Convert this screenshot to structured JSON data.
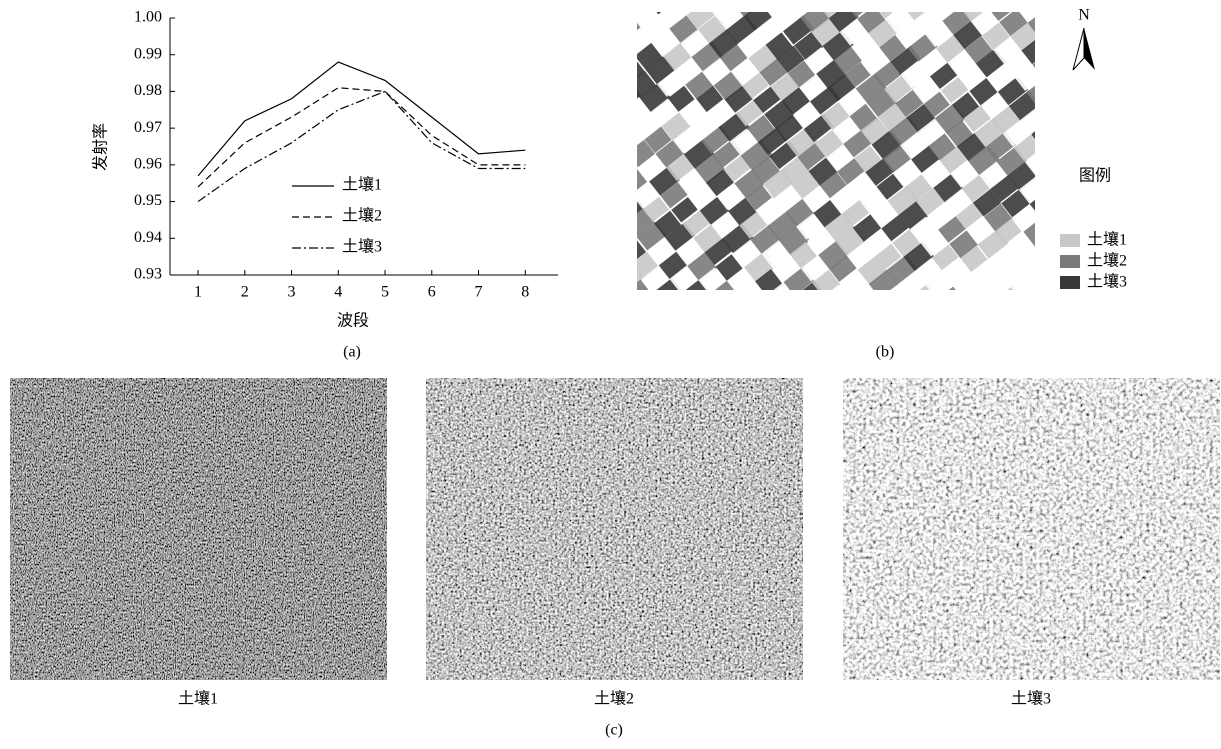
{
  "chart_data": {
    "type": "line",
    "xlabel": "波段",
    "ylabel": "发射率",
    "x": [
      1,
      2,
      3,
      4,
      5,
      6,
      7,
      8
    ],
    "xlim": [
      0.4,
      8.7
    ],
    "xticks": [
      1,
      2,
      3,
      4,
      5,
      6,
      7,
      8
    ],
    "ylim": [
      0.93,
      1.0
    ],
    "yticks": [
      0.93,
      0.94,
      0.95,
      0.96,
      0.97,
      0.98,
      0.99,
      {
        "value": 1.0,
        "label": "1.00"
      }
    ],
    "legend": "lower center",
    "series": [
      {
        "name": "土壤1",
        "color": "#000000",
        "style": "solid",
        "values": [
          0.957,
          0.972,
          0.978,
          0.988,
          0.983,
          0.973,
          0.963,
          0.964
        ]
      },
      {
        "name": "土壤2",
        "color": "#000000",
        "style": "dashed",
        "values": [
          0.954,
          0.966,
          0.973,
          0.981,
          0.98,
          0.968,
          0.96,
          0.96
        ]
      },
      {
        "name": "土壤3",
        "color": "#000000",
        "style": "dashdot",
        "values": [
          0.95,
          0.959,
          0.966,
          0.975,
          0.98,
          0.966,
          0.959,
          0.959
        ]
      }
    ]
  },
  "captions": {
    "a": "(a)",
    "b": "(b)",
    "c": "(c)"
  },
  "map": {
    "north": "N",
    "legend_title": "图例",
    "legend": [
      {
        "label": "土壤1",
        "color": "#c8c8c8"
      },
      {
        "label": "土壤2",
        "color": "#7a7a7a"
      },
      {
        "label": "土壤3",
        "color": "#383838"
      }
    ]
  },
  "photos": [
    "土壤1",
    "土壤2",
    "土壤3"
  ]
}
